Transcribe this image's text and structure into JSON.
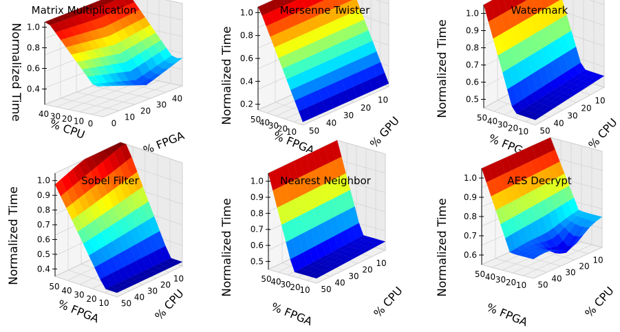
{
  "chart_data": [
    {
      "type": "surface",
      "title": "Matrix Multiplication",
      "zlabel": "Normalized Time",
      "xlabel": "% FPGA",
      "ylabel": "% CPU",
      "x_ticks": [
        "0",
        "10",
        "20",
        "30",
        "40"
      ],
      "y_ticks": [
        "0",
        "10",
        "20",
        "30",
        "40"
      ],
      "z_ticks": [
        "0.4",
        "0.6",
        "0.8",
        "1.0"
      ],
      "zlim": [
        0.25,
        1.05
      ],
      "colormap": "jet",
      "surface": {
        "low_at": "mid_fpga_low_cpu",
        "min": 0.25,
        "max": 1.0
      }
    },
    {
      "type": "surface",
      "title": "Mersenne Twister",
      "zlabel": "Normalized Time",
      "xlabel": "% FPGA",
      "ylabel": "% GPU",
      "x_ticks": [
        "50",
        "40",
        "30",
        "20",
        "10"
      ],
      "y_ticks": [
        "10",
        "20",
        "30",
        "40",
        "50"
      ],
      "z_ticks": [
        "0.2",
        "0.4",
        "0.6",
        "0.8",
        "1.0"
      ],
      "zlim": [
        0.15,
        1.05
      ],
      "colormap": "jet",
      "surface": {
        "shape": "tilted plane",
        "min": 0.18,
        "max": 1.0
      }
    },
    {
      "type": "surface",
      "title": "Watermark",
      "zlabel": "Normalized Time",
      "xlabel": "% FPGA",
      "ylabel": "% CPU",
      "x_ticks": [
        "50",
        "40",
        "30",
        "20",
        "10"
      ],
      "y_ticks": [
        "10",
        "20",
        "30",
        "40",
        "50"
      ],
      "z_ticks": [
        "0.5",
        "0.6",
        "0.7",
        "0.8",
        "0.9",
        "1.0"
      ],
      "zlim": [
        0.45,
        1.05
      ],
      "colormap": "jet",
      "surface": {
        "min": 0.48,
        "max": 1.0
      }
    },
    {
      "type": "surface",
      "title": "Sobel Filter",
      "zlabel": "Normalized Time",
      "xlabel": "% FPGA",
      "ylabel": "% CPU",
      "x_ticks": [
        "50",
        "40",
        "30",
        "20",
        "10"
      ],
      "y_ticks": [
        "10",
        "20",
        "30",
        "40",
        "50"
      ],
      "z_ticks": [
        "0.4",
        "0.5",
        "0.6",
        "0.7",
        "0.8",
        "0.9",
        "1.0"
      ],
      "zlim": [
        0.35,
        1.05
      ],
      "colormap": "jet",
      "surface": {
        "min": 0.38,
        "max": 1.0
      }
    },
    {
      "type": "surface",
      "title": "Nearest Neighbor",
      "zlabel": "Normalized Time",
      "xlabel": "% FPGA",
      "ylabel": "% CPU",
      "x_ticks": [
        "50",
        "40",
        "30",
        "20",
        "10"
      ],
      "y_ticks": [
        "10",
        "20",
        "30",
        "40",
        "50"
      ],
      "z_ticks": [
        "0.5",
        "0.6",
        "0.7",
        "0.8",
        "0.9",
        "1.0"
      ],
      "zlim": [
        0.45,
        1.05
      ],
      "colormap": "jet",
      "surface": {
        "min": 0.48,
        "max": 1.0
      }
    },
    {
      "type": "surface",
      "title": "AES Decrypt",
      "zlabel": "Normalized Time",
      "xlabel": "% FPGA",
      "ylabel": "% CPU",
      "x_ticks": [
        "50",
        "40",
        "30",
        "20",
        "10"
      ],
      "y_ticks": [
        "10",
        "20",
        "30",
        "40",
        "50"
      ],
      "z_ticks": [
        "0.6",
        "0.7",
        "0.8",
        "0.9",
        "1.0"
      ],
      "zlim": [
        0.55,
        1.05
      ],
      "colormap": "jet",
      "surface": {
        "min": 0.6,
        "max": 1.0
      }
    }
  ]
}
